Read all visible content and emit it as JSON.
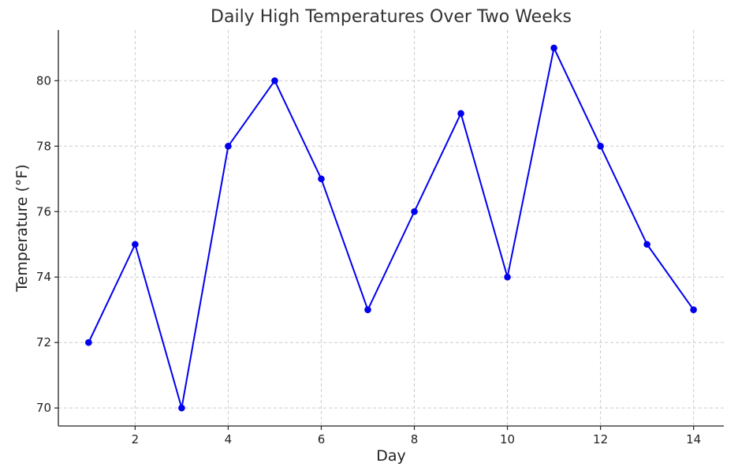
{
  "chart_data": {
    "type": "line",
    "title": "Daily High Temperatures Over Two Weeks",
    "xlabel": "Day",
    "ylabel": "Temperature (°F)",
    "x": [
      1,
      2,
      3,
      4,
      5,
      6,
      7,
      8,
      9,
      10,
      11,
      12,
      13,
      14
    ],
    "series": [
      {
        "values": [
          72,
          75,
          70,
          78,
          80,
          77,
          73,
          76,
          79,
          74,
          81,
          78,
          75,
          73
        ],
        "color": "#0000ee"
      }
    ],
    "xlim": [
      0.35,
      14.65
    ],
    "ylim": [
      69.45,
      81.55
    ],
    "xticks": [
      2,
      4,
      6,
      8,
      10,
      12,
      14
    ],
    "yticks": [
      70,
      72,
      74,
      76,
      78,
      80
    ],
    "grid": true,
    "legend": "none"
  }
}
